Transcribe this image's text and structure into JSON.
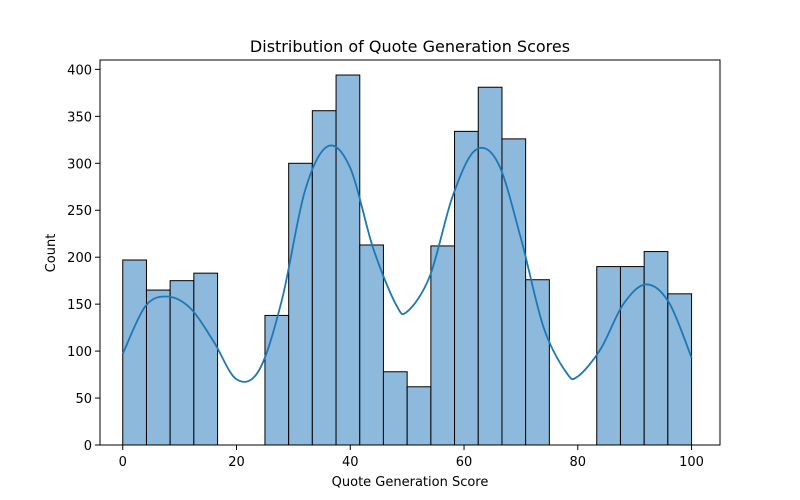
{
  "chart_data": {
    "type": "bar",
    "title": "Distribution of Quote Generation Scores",
    "xlabel": "Quote Generation Score",
    "ylabel": "Count",
    "xlim": [
      -4,
      105
    ],
    "ylim": [
      0,
      410
    ],
    "xticks": [
      0,
      20,
      40,
      60,
      80,
      100
    ],
    "yticks": [
      0,
      50,
      100,
      150,
      200,
      250,
      300,
      350,
      400
    ],
    "bins": [
      {
        "x0": 0.0,
        "x1": 4.17,
        "count": 197
      },
      {
        "x0": 4.17,
        "x1": 8.33,
        "count": 165
      },
      {
        "x0": 8.33,
        "x1": 12.5,
        "count": 175
      },
      {
        "x0": 12.5,
        "x1": 16.67,
        "count": 183
      },
      {
        "x0": 16.67,
        "x1": 20.83,
        "count": 0
      },
      {
        "x0": 20.83,
        "x1": 25.0,
        "count": 0
      },
      {
        "x0": 25.0,
        "x1": 29.17,
        "count": 138
      },
      {
        "x0": 29.17,
        "x1": 33.33,
        "count": 300
      },
      {
        "x0": 33.33,
        "x1": 37.5,
        "count": 356
      },
      {
        "x0": 37.5,
        "x1": 41.67,
        "count": 394
      },
      {
        "x0": 41.67,
        "x1": 45.83,
        "count": 213
      },
      {
        "x0": 45.83,
        "x1": 50.0,
        "count": 78
      },
      {
        "x0": 50.0,
        "x1": 54.17,
        "count": 62
      },
      {
        "x0": 54.17,
        "x1": 58.33,
        "count": 212
      },
      {
        "x0": 58.33,
        "x1": 62.5,
        "count": 334
      },
      {
        "x0": 62.5,
        "x1": 66.67,
        "count": 381
      },
      {
        "x0": 66.67,
        "x1": 70.83,
        "count": 326
      },
      {
        "x0": 70.83,
        "x1": 75.0,
        "count": 176
      },
      {
        "x0": 75.0,
        "x1": 79.17,
        "count": 0
      },
      {
        "x0": 79.17,
        "x1": 83.33,
        "count": 0
      },
      {
        "x0": 83.33,
        "x1": 87.5,
        "count": 190
      },
      {
        "x0": 87.5,
        "x1": 91.67,
        "count": 190
      },
      {
        "x0": 91.67,
        "x1": 95.83,
        "count": 206
      },
      {
        "x0": 95.83,
        "x1": 100.0,
        "count": 161
      }
    ],
    "kde": {
      "x": [
        0,
        4,
        8,
        12,
        16,
        20,
        24,
        28,
        32,
        36,
        40,
        44,
        48,
        50,
        54,
        58,
        62,
        66,
        70,
        74,
        78,
        80,
        84,
        88,
        92,
        96,
        100
      ],
      "y": [
        97,
        148,
        158,
        145,
        110,
        70,
        80,
        155,
        270,
        318,
        295,
        210,
        150,
        142,
        180,
        265,
        314,
        300,
        220,
        125,
        77,
        73,
        102,
        150,
        171,
        152,
        93
      ]
    },
    "colors": {
      "bar_fill": "#8db9dc",
      "bar_edge": "#000000",
      "kde_line": "#1f77b4"
    }
  }
}
